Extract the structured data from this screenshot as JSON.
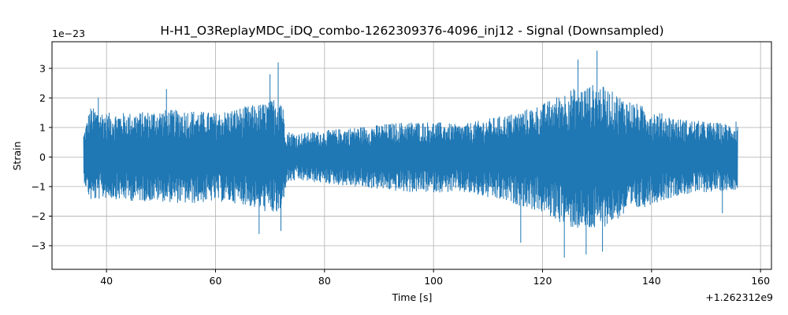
{
  "chart_data": {
    "type": "line",
    "title": "H-H1_O3ReplayMDC_iDQ_combo-1262309376-4096_inj12 - Signal (Downsampled)",
    "xlabel": "Time [s]",
    "ylabel": "Strain",
    "x_offset_label": "+1.262312e9",
    "y_scale_label": "1e−23",
    "xlim": [
      30,
      162
    ],
    "ylim": [
      -3.8,
      3.9
    ],
    "xticks": [
      40,
      60,
      80,
      100,
      120,
      140,
      160
    ],
    "xtick_labels": [
      "40",
      "60",
      "80",
      "100",
      "120",
      "140",
      "160"
    ],
    "yticks": [
      -3,
      -2,
      -1,
      0,
      1,
      2,
      3
    ],
    "ytick_labels": [
      "−3",
      "−2",
      "−1",
      "0",
      "1",
      "2",
      "3"
    ],
    "grid": true,
    "series_color": "#1f77b4",
    "x_range": [
      35.8,
      155.8
    ],
    "envelope": {
      "t": [
        35.8,
        37,
        40,
        45,
        50,
        55,
        60,
        65,
        68,
        70,
        72,
        73,
        75,
        80,
        85,
        90,
        95,
        100,
        105,
        110,
        115,
        120,
        122,
        125,
        128,
        130,
        132,
        135,
        140,
        145,
        150,
        155.8
      ],
      "upper": [
        0.8,
        1.7,
        1.5,
        1.5,
        1.6,
        1.6,
        1.5,
        1.7,
        1.8,
        1.9,
        2.2,
        0.9,
        0.8,
        0.9,
        1.0,
        1.1,
        1.2,
        1.2,
        1.1,
        1.3,
        1.5,
        1.8,
        2.0,
        2.3,
        2.4,
        2.5,
        2.3,
        2.0,
        1.6,
        1.3,
        1.2,
        1.1
      ],
      "lower": [
        -0.8,
        -1.5,
        -1.4,
        -1.5,
        -1.5,
        -1.6,
        -1.5,
        -1.6,
        -1.8,
        -1.9,
        -2.0,
        -0.9,
        -0.8,
        -0.9,
        -1.0,
        -1.1,
        -1.2,
        -1.2,
        -1.2,
        -1.4,
        -1.6,
        -1.9,
        -2.1,
        -2.4,
        -2.5,
        -2.5,
        -2.3,
        -2.0,
        -1.6,
        -1.3,
        -1.2,
        -1.1
      ]
    },
    "peaks": [
      {
        "x": 38.5,
        "y": 2.0
      },
      {
        "x": 51.0,
        "y": 2.3
      },
      {
        "x": 71.5,
        "y": 3.2
      },
      {
        "x": 70.0,
        "y": 2.8
      },
      {
        "x": 68.0,
        "y": -2.6
      },
      {
        "x": 72.0,
        "y": -2.5
      },
      {
        "x": 124.0,
        "y": -3.4
      },
      {
        "x": 126.5,
        "y": 3.3
      },
      {
        "x": 130.0,
        "y": 3.6
      },
      {
        "x": 128.0,
        "y": -3.3
      },
      {
        "x": 131.0,
        "y": -3.2
      },
      {
        "x": 116.0,
        "y": -2.9
      },
      {
        "x": 36.0,
        "y": 0.7
      },
      {
        "x": 155.5,
        "y": 1.2
      },
      {
        "x": 153.0,
        "y": -1.9
      }
    ]
  }
}
